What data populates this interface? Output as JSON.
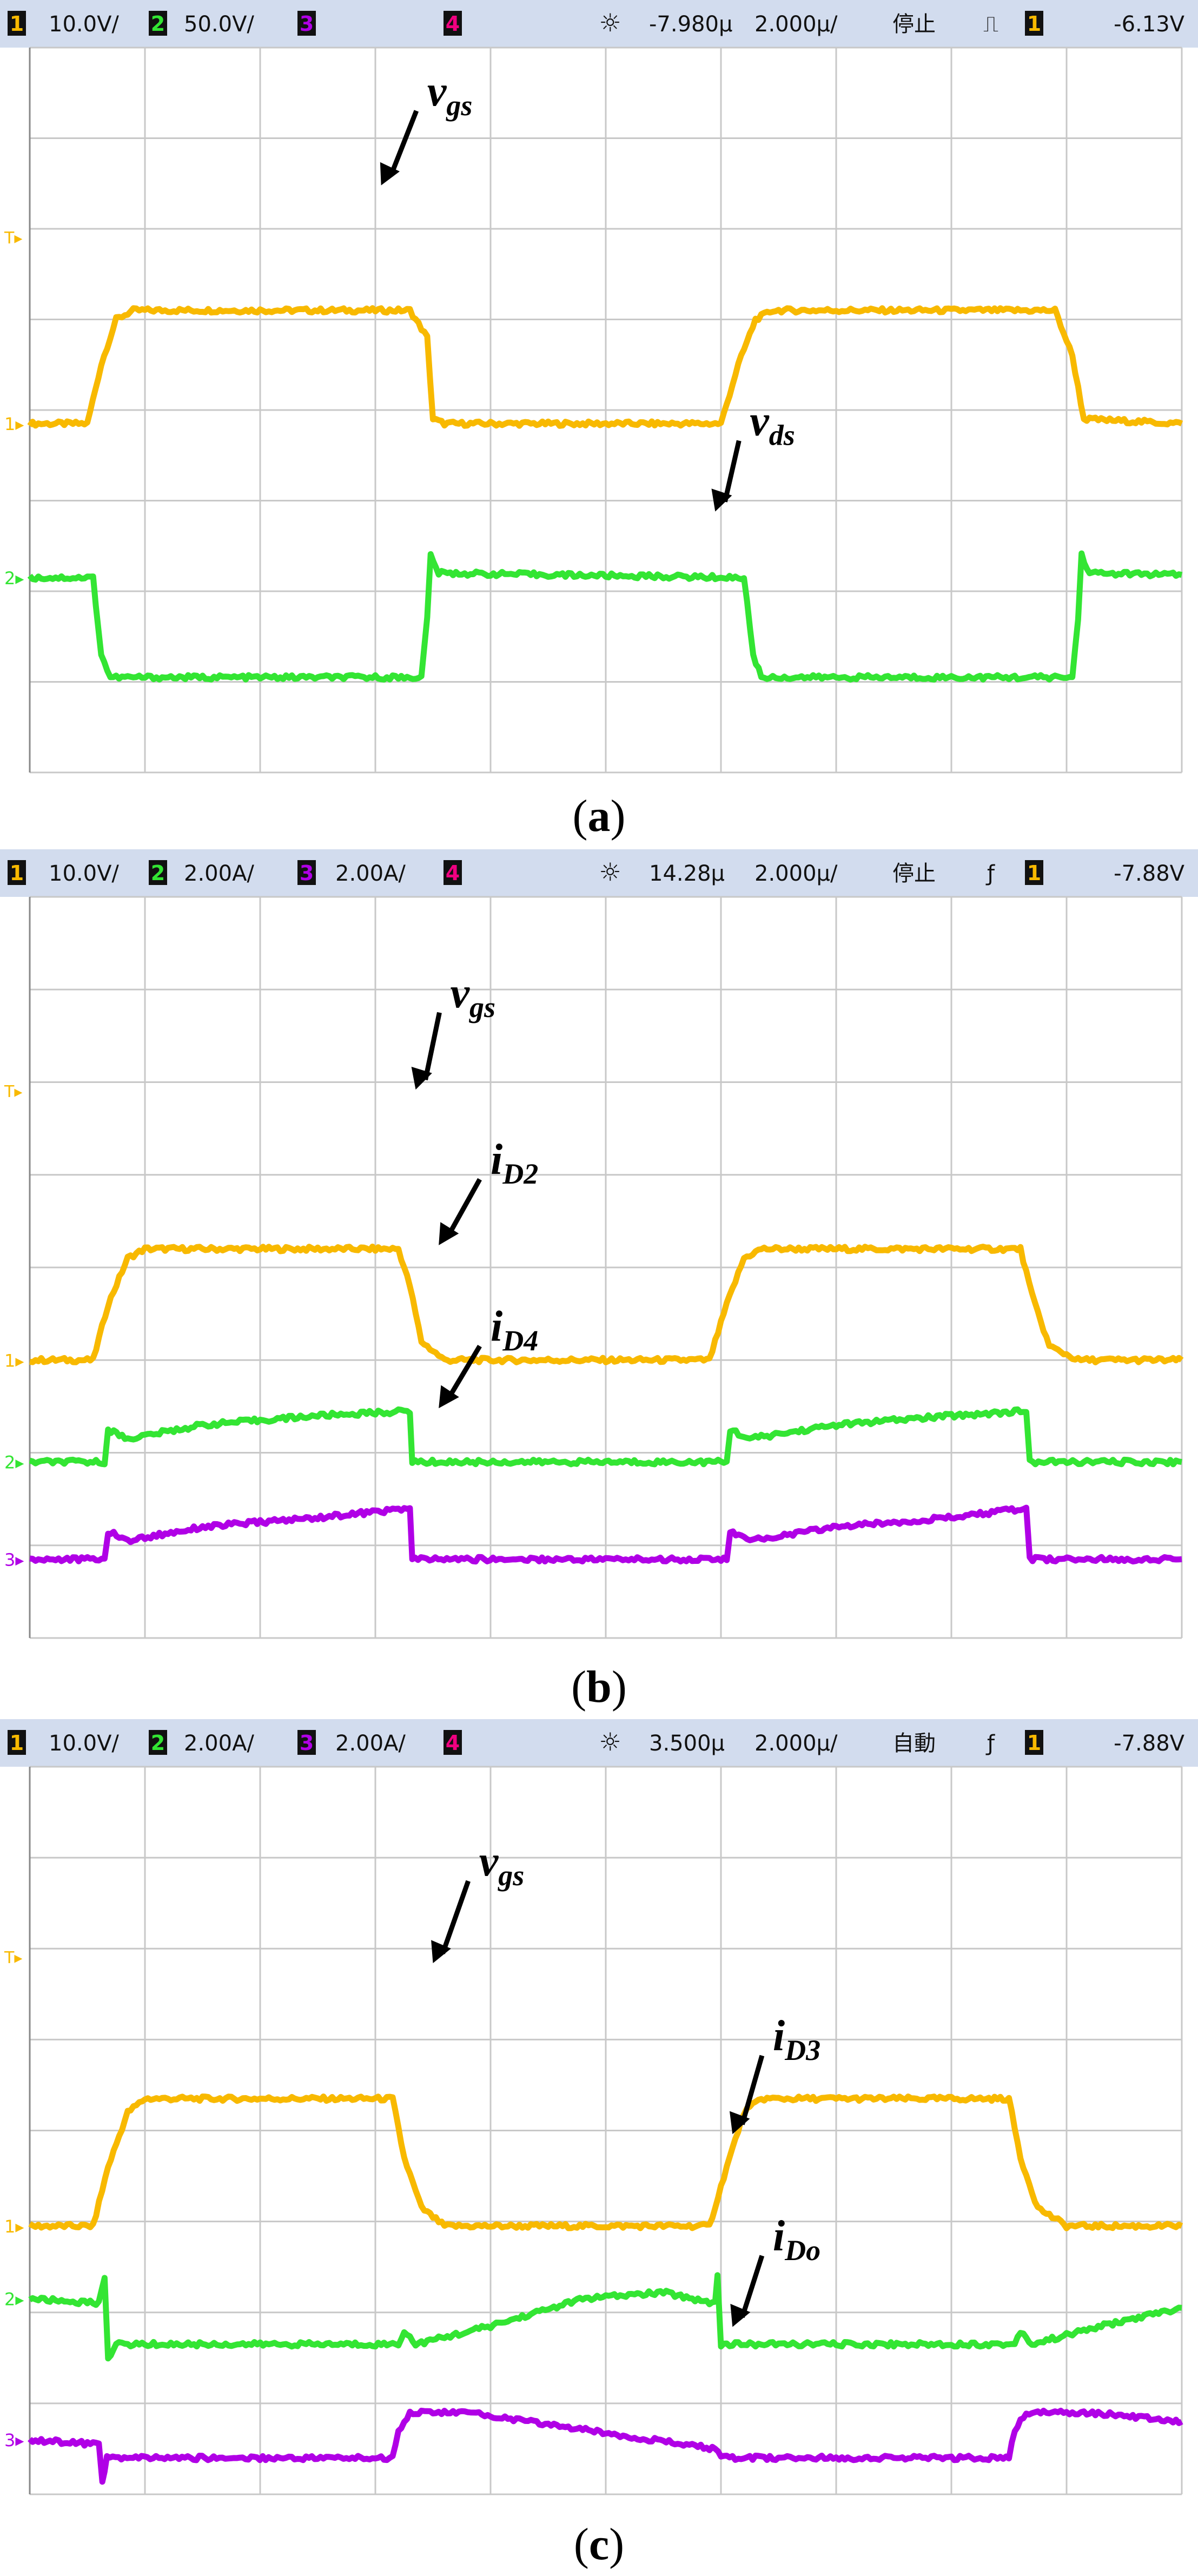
{
  "colors": {
    "ch1": "#f8b900",
    "ch2": "#33e533",
    "ch3": "#b000e6",
    "ch4": "#f00080",
    "header_bg": "#d2dcee",
    "grid": "#c8c8c8"
  },
  "panels": [
    {
      "label": "a",
      "header": {
        "ch1_scale": "10.0V/",
        "ch2_scale": "50.0V/",
        "ch4_num": "4",
        "trig_pos": "-7.980µ",
        "timebase": "2.000µ/",
        "run_state": "停止",
        "trig_icon": "⎍",
        "trig_level": "-6.13V"
      },
      "annotations": [
        "vgs",
        "vds"
      ]
    },
    {
      "label": "b",
      "header": {
        "ch1_scale": "10.0V/",
        "ch2_scale": "2.00A/",
        "ch3_scale": "2.00A/",
        "ch4_num": "4",
        "trig_pos": "14.28µ",
        "timebase": "2.000µ/",
        "run_state": "停止",
        "trig_icon": "ƒ",
        "trig_level": "-7.88V"
      },
      "annotations": [
        "vgs",
        "iD2",
        "iD4"
      ]
    },
    {
      "label": "c",
      "header": {
        "ch1_scale": "10.0V/",
        "ch2_scale": "2.00A/",
        "ch3_scale": "2.00A/",
        "ch4_num": "4",
        "trig_pos": "3.500µ",
        "timebase": "2.000µ/",
        "run_state": "自動",
        "trig_icon": "ƒ",
        "trig_level": "-7.88V"
      },
      "annotations": [
        "vgs",
        "iD3",
        "iDo"
      ]
    }
  ],
  "chart_data": [
    {
      "type": "line",
      "panel": "a",
      "x_unit": "div",
      "xlim": [
        0,
        10
      ],
      "ylim": [
        -4,
        4
      ],
      "grid": true,
      "series": [
        {
          "name": "vgs",
          "channel": 1,
          "points": [
            [
              0,
              -0.15
            ],
            [
              0.5,
              -0.15
            ],
            [
              0.62,
              0.5
            ],
            [
              0.75,
              1.0
            ],
            [
              0.9,
              1.1
            ],
            [
              3.3,
              1.1
            ],
            [
              3.45,
              0.8
            ],
            [
              3.5,
              -0.1
            ],
            [
              3.6,
              -0.15
            ],
            [
              6.0,
              -0.15
            ],
            [
              6.15,
              0.5
            ],
            [
              6.3,
              1.0
            ],
            [
              6.45,
              1.1
            ],
            [
              8.9,
              1.1
            ],
            [
              9.05,
              0.6
            ],
            [
              9.15,
              -0.1
            ],
            [
              10,
              -0.15
            ]
          ]
        },
        {
          "name": "vds",
          "channel": 2,
          "points": [
            [
              0,
              -1.85
            ],
            [
              0.55,
              -1.85
            ],
            [
              0.62,
              -2.7
            ],
            [
              0.7,
              -2.95
            ],
            [
              3.4,
              -2.95
            ],
            [
              3.45,
              -2.3
            ],
            [
              3.48,
              -1.6
            ],
            [
              3.55,
              -1.8
            ],
            [
              6.2,
              -1.85
            ],
            [
              6.28,
              -2.7
            ],
            [
              6.35,
              -2.95
            ],
            [
              9.05,
              -2.95
            ],
            [
              9.1,
              -2.3
            ],
            [
              9.13,
              -1.6
            ],
            [
              9.2,
              -1.8
            ],
            [
              10,
              -1.82
            ]
          ]
        }
      ]
    },
    {
      "type": "line",
      "panel": "b",
      "x_unit": "div",
      "xlim": [
        0,
        10
      ],
      "ylim": [
        -4,
        4
      ],
      "grid": true,
      "series": [
        {
          "name": "vgs",
          "channel": 1,
          "points": [
            [
              0,
              -1.0
            ],
            [
              0.55,
              -1.0
            ],
            [
              0.68,
              -0.4
            ],
            [
              0.85,
              0.1
            ],
            [
              1.0,
              0.2
            ],
            [
              3.2,
              0.2
            ],
            [
              3.3,
              -0.2
            ],
            [
              3.4,
              -0.8
            ],
            [
              3.6,
              -1.0
            ],
            [
              5.9,
              -1.0
            ],
            [
              6.05,
              -0.4
            ],
            [
              6.2,
              0.1
            ],
            [
              6.35,
              0.2
            ],
            [
              8.6,
              0.2
            ],
            [
              8.7,
              -0.3
            ],
            [
              8.85,
              -0.85
            ],
            [
              9.1,
              -1.0
            ],
            [
              10,
              -1.0
            ]
          ]
        },
        {
          "name": "iD2",
          "channel": 2,
          "points": [
            [
              0,
              -2.1
            ],
            [
              0.65,
              -2.1
            ],
            [
              0.68,
              -1.75
            ],
            [
              0.85,
              -1.85
            ],
            [
              1.5,
              -1.7
            ],
            [
              2.5,
              -1.6
            ],
            [
              3.3,
              -1.55
            ],
            [
              3.32,
              -2.1
            ],
            [
              6.05,
              -2.1
            ],
            [
              6.08,
              -1.75
            ],
            [
              6.25,
              -1.85
            ],
            [
              7.0,
              -1.7
            ],
            [
              8.0,
              -1.6
            ],
            [
              8.65,
              -1.55
            ],
            [
              8.68,
              -2.1
            ],
            [
              10,
              -2.1
            ]
          ]
        },
        {
          "name": "iD4",
          "channel": 3,
          "points": [
            [
              0,
              -3.15
            ],
            [
              0.65,
              -3.15
            ],
            [
              0.68,
              -2.85
            ],
            [
              0.85,
              -2.95
            ],
            [
              1.5,
              -2.8
            ],
            [
              2.5,
              -2.7
            ],
            [
              3.3,
              -2.6
            ],
            [
              3.32,
              -3.15
            ],
            [
              6.05,
              -3.15
            ],
            [
              6.08,
              -2.85
            ],
            [
              6.25,
              -2.95
            ],
            [
              7.0,
              -2.8
            ],
            [
              8.0,
              -2.7
            ],
            [
              8.65,
              -2.6
            ],
            [
              8.68,
              -3.15
            ],
            [
              10,
              -3.15
            ]
          ]
        }
      ]
    },
    {
      "type": "line",
      "panel": "c",
      "x_unit": "div",
      "xlim": [
        0,
        10
      ],
      "ylim": [
        -4,
        4
      ],
      "grid": true,
      "series": [
        {
          "name": "vgs",
          "channel": 1,
          "points": [
            [
              0,
              -1.05
            ],
            [
              0.55,
              -1.05
            ],
            [
              0.68,
              -0.4
            ],
            [
              0.85,
              0.2
            ],
            [
              1.0,
              0.35
            ],
            [
              3.15,
              0.35
            ],
            [
              3.25,
              -0.3
            ],
            [
              3.4,
              -0.85
            ],
            [
              3.6,
              -1.05
            ],
            [
              5.9,
              -1.05
            ],
            [
              6.05,
              -0.4
            ],
            [
              6.2,
              0.2
            ],
            [
              6.35,
              0.35
            ],
            [
              8.5,
              0.35
            ],
            [
              8.6,
              -0.3
            ],
            [
              8.75,
              -0.85
            ],
            [
              9.0,
              -1.05
            ],
            [
              10,
              -1.05
            ]
          ]
        },
        {
          "name": "iD3",
          "channel": 2,
          "points": [
            [
              0,
              -1.85
            ],
            [
              0.6,
              -1.9
            ],
            [
              0.65,
              -1.6
            ],
            [
              0.68,
              -2.5
            ],
            [
              0.75,
              -2.35
            ],
            [
              3.2,
              -2.35
            ],
            [
              3.25,
              -2.2
            ],
            [
              3.35,
              -2.35
            ],
            [
              4.0,
              -2.15
            ],
            [
              4.8,
              -1.85
            ],
            [
              5.5,
              -1.78
            ],
            [
              5.95,
              -1.9
            ],
            [
              5.97,
              -1.6
            ],
            [
              6.0,
              -2.35
            ],
            [
              8.55,
              -2.35
            ],
            [
              8.6,
              -2.2
            ],
            [
              8.7,
              -2.35
            ],
            [
              9.3,
              -2.15
            ],
            [
              10,
              -1.95
            ]
          ]
        },
        {
          "name": "iDo",
          "channel": 3,
          "points": [
            [
              0,
              -3.4
            ],
            [
              0.6,
              -3.45
            ],
            [
              0.63,
              -3.85
            ],
            [
              0.67,
              -3.6
            ],
            [
              3.15,
              -3.6
            ],
            [
              3.2,
              -3.3
            ],
            [
              3.3,
              -3.1
            ],
            [
              3.8,
              -3.1
            ],
            [
              4.6,
              -3.25
            ],
            [
              5.4,
              -3.4
            ],
            [
              5.95,
              -3.5
            ],
            [
              6.0,
              -3.6
            ],
            [
              8.5,
              -3.6
            ],
            [
              8.55,
              -3.3
            ],
            [
              8.65,
              -3.1
            ],
            [
              9.2,
              -3.1
            ],
            [
              10,
              -3.2
            ]
          ]
        }
      ]
    }
  ]
}
